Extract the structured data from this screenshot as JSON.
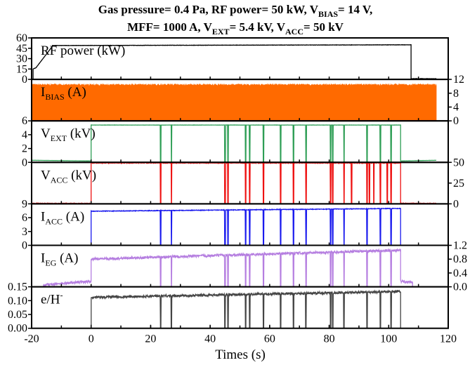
{
  "title": {
    "line1": [
      {
        "t": "Gas pressure= 0.4 Pa, RF power= 50 kW, V"
      },
      {
        "t": "BIAS",
        "sub": true
      },
      {
        "t": "= 14 V,"
      }
    ],
    "line2": [
      {
        "t": "MFF= 1000 A, V"
      },
      {
        "t": "EXT",
        "sub": true
      },
      {
        "t": "= 5.4 kV, V"
      },
      {
        "t": "ACC",
        "sub": true
      },
      {
        "t": "= 50 kV"
      }
    ]
  },
  "chart_data": {
    "type": "line",
    "xlabel": "Times (s)",
    "xlim": [
      -20,
      120
    ],
    "xticks": [
      -20,
      0,
      20,
      40,
      60,
      80,
      100,
      120
    ],
    "xtick_labels": [
      "-20",
      "0",
      "20",
      "40",
      "60",
      "80",
      "100",
      "120"
    ],
    "breakdown_times": [
      23.4,
      27.0,
      45.0,
      46.0,
      51.9,
      53.3,
      57.9,
      63.7,
      68.0,
      72.2,
      80.5,
      81.2,
      85.0,
      92.7,
      97.2,
      100.8
    ],
    "extra_vacc_dips": [
      87.5,
      93.5,
      95.0,
      99.5
    ],
    "series": [
      {
        "name": "RF power",
        "label": [
          {
            "t": "RF power (kW)"
          }
        ],
        "color": "#000000",
        "axis": "left",
        "ylim": [
          0,
          60
        ],
        "ticks": [
          0,
          15,
          30,
          45,
          60
        ],
        "tick_labels": [
          "0",
          "15",
          "30",
          "45",
          "60"
        ],
        "noise": 0.4,
        "trips": false,
        "segments": [
          [
            -20,
            -19.5,
            0,
            0
          ],
          [
            -19.5,
            -18.5,
            15,
            17
          ],
          [
            -18.5,
            -13,
            17,
            48
          ],
          [
            -13,
            107.5,
            49,
            50
          ],
          [
            107.5,
            116,
            1,
            1
          ]
        ]
      },
      {
        "name": "I_BIAS",
        "label": [
          {
            "t": "I"
          },
          {
            "t": "BIAS",
            "sub": true
          },
          {
            "t": " (A)"
          }
        ],
        "color": "#ff6a00",
        "axis": "right",
        "ylim": [
          0,
          12
        ],
        "ticks": [
          0,
          4,
          8,
          12
        ],
        "tick_labels": [
          "0",
          "4",
          "8",
          "12"
        ],
        "noise": 0.6,
        "trips": false,
        "fill": true,
        "segments": [
          [
            -20,
            116,
            10.4,
            10.4
          ]
        ]
      },
      {
        "name": "V_EXT",
        "label": [
          {
            "t": "V"
          },
          {
            "t": "EXT",
            "sub": true
          },
          {
            "t": " (kV)"
          }
        ],
        "color": "#2e9e55",
        "axis": "left",
        "ylim": [
          0,
          6
        ],
        "ticks": [
          0,
          2,
          4,
          6
        ],
        "tick_labels": [
          "0",
          "2",
          "4",
          "6"
        ],
        "noise": 0.02,
        "trips": true,
        "segments": [
          [
            -20,
            0,
            0.3,
            0.2
          ],
          [
            0,
            104,
            5.4,
            5.4
          ],
          [
            104,
            116,
            0.2,
            0.3
          ]
        ]
      },
      {
        "name": "V_ACC",
        "label": [
          {
            "t": "V"
          },
          {
            "t": "ACC",
            "sub": true
          },
          {
            "t": " (kV)"
          }
        ],
        "color": "#ee1111",
        "axis": "right",
        "ylim": [
          0,
          50
        ],
        "ticks": [
          0,
          25,
          50
        ],
        "tick_labels": [
          "0",
          "25",
          "50"
        ],
        "noise": 0.8,
        "trips": true,
        "extra": true,
        "segments": [
          [
            -20,
            0,
            0.5,
            0.5
          ],
          [
            0,
            104,
            49.3,
            49.3
          ],
          [
            104,
            116,
            0.5,
            0.5
          ]
        ]
      },
      {
        "name": "I_ACC",
        "label": [
          {
            "t": "I"
          },
          {
            "t": "ACC",
            "sub": true
          },
          {
            "t": " (A)"
          }
        ],
        "color": "#1a1aee",
        "axis": "left",
        "ylim": [
          0,
          9
        ],
        "ticks": [
          0,
          3,
          6,
          9
        ],
        "tick_labels": [
          "0",
          "3",
          "6",
          "9"
        ],
        "noise": 0.12,
        "trips": true,
        "segments": [
          [
            -20,
            0,
            0,
            0
          ],
          [
            0,
            104,
            7.4,
            8.0
          ],
          [
            104,
            116,
            0,
            0
          ]
        ]
      },
      {
        "name": "I_EG",
        "label": [
          {
            "t": "I"
          },
          {
            "t": "EG",
            "sub": true
          },
          {
            "t": " (A)"
          }
        ],
        "color": "#b57ee0",
        "axis": "right",
        "ylim": [
          0,
          1.2
        ],
        "ticks": [
          0,
          0.4,
          0.8,
          1.2
        ],
        "tick_labels": [
          "0.0",
          "0.4",
          "0.8",
          "1.2"
        ],
        "noise": 0.07,
        "trips": true,
        "segments": [
          [
            -20,
            -16,
            0,
            0
          ],
          [
            -16,
            0,
            0.05,
            0.16
          ],
          [
            0,
            104,
            0.8,
            1.06
          ],
          [
            104,
            108,
            0.16,
            0.12
          ],
          [
            108,
            116,
            0,
            0
          ]
        ]
      },
      {
        "name": "e/H-",
        "label": [
          {
            "t": "e/H"
          },
          {
            "t": "-",
            "sup": true
          }
        ],
        "color": "#444444",
        "axis": "left",
        "ylim": [
          0,
          0.15
        ],
        "ticks": [
          0,
          0.05,
          0.1,
          0.15
        ],
        "tick_labels": [
          "0.00",
          "0.05",
          "0.10",
          "0.15"
        ],
        "noise": 0.008,
        "trips": true,
        "segments": [
          [
            0,
            0.01,
            0,
            0
          ],
          [
            0.01,
            104,
            0.112,
            0.133
          ],
          [
            104,
            104.1,
            0,
            0
          ]
        ]
      }
    ]
  }
}
